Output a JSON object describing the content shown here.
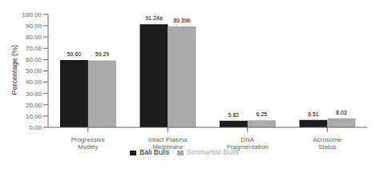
{
  "chart_data": {
    "type": "bar",
    "categories": [
      "Progressive Motility",
      "Intact Plasma Membrane",
      "DNA Fragmentation",
      "Acrosome Status"
    ],
    "series": [
      {
        "name": "Bali Bulls",
        "color": "#1c1c1c",
        "values": [
          59.6,
          91.24,
          5.82,
          6.51
        ],
        "value_labels": [
          "59.60",
          "91.24a",
          "5.82",
          "6.51"
        ]
      },
      {
        "name": "Simmental Bulls",
        "color": "#aaaaaa",
        "values": [
          59.29,
          89.39,
          6.25,
          8.03
        ],
        "value_labels": [
          "59.29",
          "89.39b",
          "6.25",
          "8.03"
        ]
      }
    ],
    "ylabel": "Percentage (%)",
    "ylim": [
      0,
      100
    ],
    "yticks": [
      {
        "value": 0,
        "label": "0.00"
      },
      {
        "value": 10,
        "label": "10.00"
      },
      {
        "value": 20,
        "label": "20.00"
      },
      {
        "value": 30,
        "label": "30.00"
      },
      {
        "value": 40,
        "label": "40.00"
      },
      {
        "value": 50,
        "label": "50.00"
      },
      {
        "value": 60,
        "label": "60.00"
      },
      {
        "value": 70,
        "label": "70.00"
      },
      {
        "value": 80,
        "label": "80.00"
      },
      {
        "value": 90,
        "label": "90.00"
      },
      {
        "value": 100,
        "label": "100.00"
      }
    ],
    "grid": false,
    "legend": "bottom",
    "data_labels": true
  }
}
